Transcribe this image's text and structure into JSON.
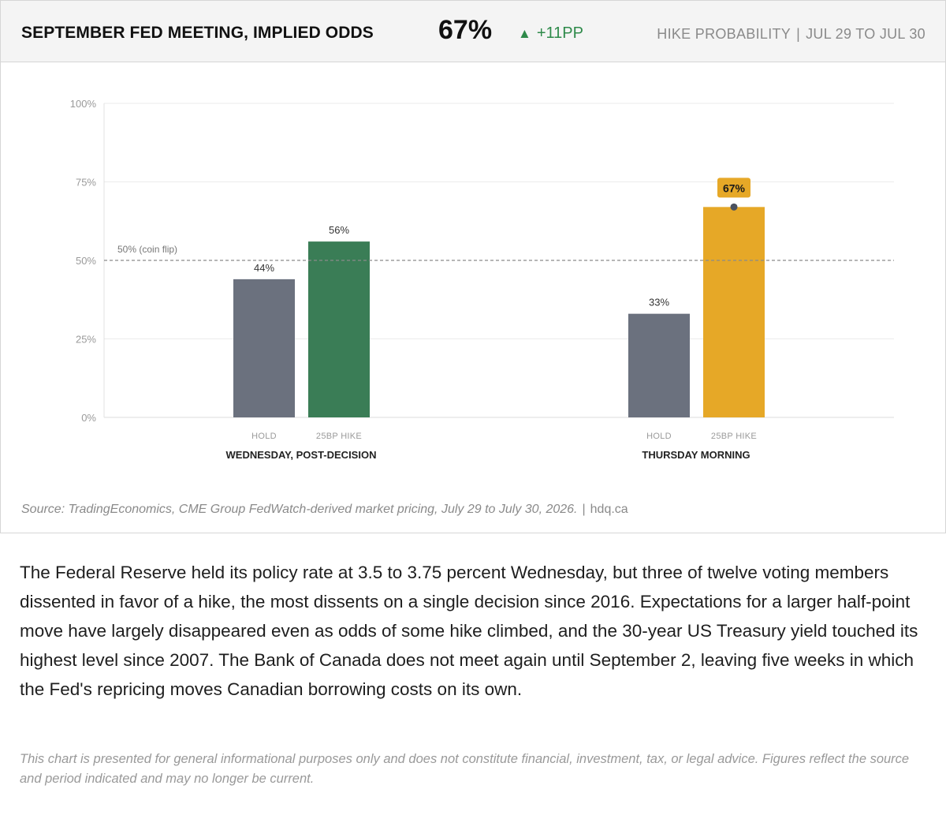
{
  "header": {
    "title": "SEPTEMBER FED MEETING, IMPLIED ODDS",
    "value": "67%",
    "change": "+11PP",
    "change_icon": "triangle-up-icon",
    "metric": "HIKE PROBABILITY",
    "separator": "|",
    "period": "JUL 29 TO JUL 30"
  },
  "chart_data": {
    "type": "bar",
    "ylim": [
      0,
      100
    ],
    "yticks": [
      0,
      25,
      50,
      75,
      100
    ],
    "ytick_labels": [
      "0%",
      "25%",
      "50%",
      "75%",
      "100%"
    ],
    "grid": true,
    "reference_line": {
      "value": 50,
      "label": "50% (coin flip)"
    },
    "groups": [
      {
        "label": "WEDNESDAY, POST-DECISION",
        "bars": [
          {
            "category": "HOLD",
            "value": 44,
            "label": "44%",
            "color": "#6b717e"
          },
          {
            "category": "25BP HIKE",
            "value": 56,
            "label": "56%",
            "color": "#3a7d56"
          }
        ]
      },
      {
        "label": "THURSDAY MORNING",
        "bars": [
          {
            "category": "HOLD",
            "value": 33,
            "label": "33%",
            "color": "#6b717e"
          },
          {
            "category": "25BP HIKE",
            "value": 67,
            "label": "67%",
            "color": "#e6a827",
            "highlight": true
          }
        ]
      }
    ]
  },
  "colors": {
    "hold": "#6b717e",
    "hike_wednesday": "#3a7d56",
    "hike_thursday": "#e6a827",
    "positive": "#2e8a4a",
    "grid": "#ebebeb",
    "reference": "#8a8a8a"
  },
  "source": {
    "text": "Source: TradingEconomics, CME Group FedWatch-derived market pricing, July 29 to July 30, 2026.",
    "separator": "|",
    "site": "hdq.ca"
  },
  "body_text": "The Federal Reserve held its policy rate at 3.5 to 3.75 percent Wednesday, but three of twelve voting members dissented in favor of a hike, the most dissents on a single decision since 2016. Expectations for a larger half-point move have largely disappeared even as odds of some hike climbed, and the 30-year US Treasury yield touched its highest level since 2007. The Bank of Canada does not meet again until September 2, leaving five weeks in which the Fed's repricing moves Canadian borrowing costs on its own.",
  "disclaimer": "This chart is presented for general informational purposes only and does not constitute financial, investment, tax, or legal advice. Figures reflect the source and period indicated and may no longer be current."
}
